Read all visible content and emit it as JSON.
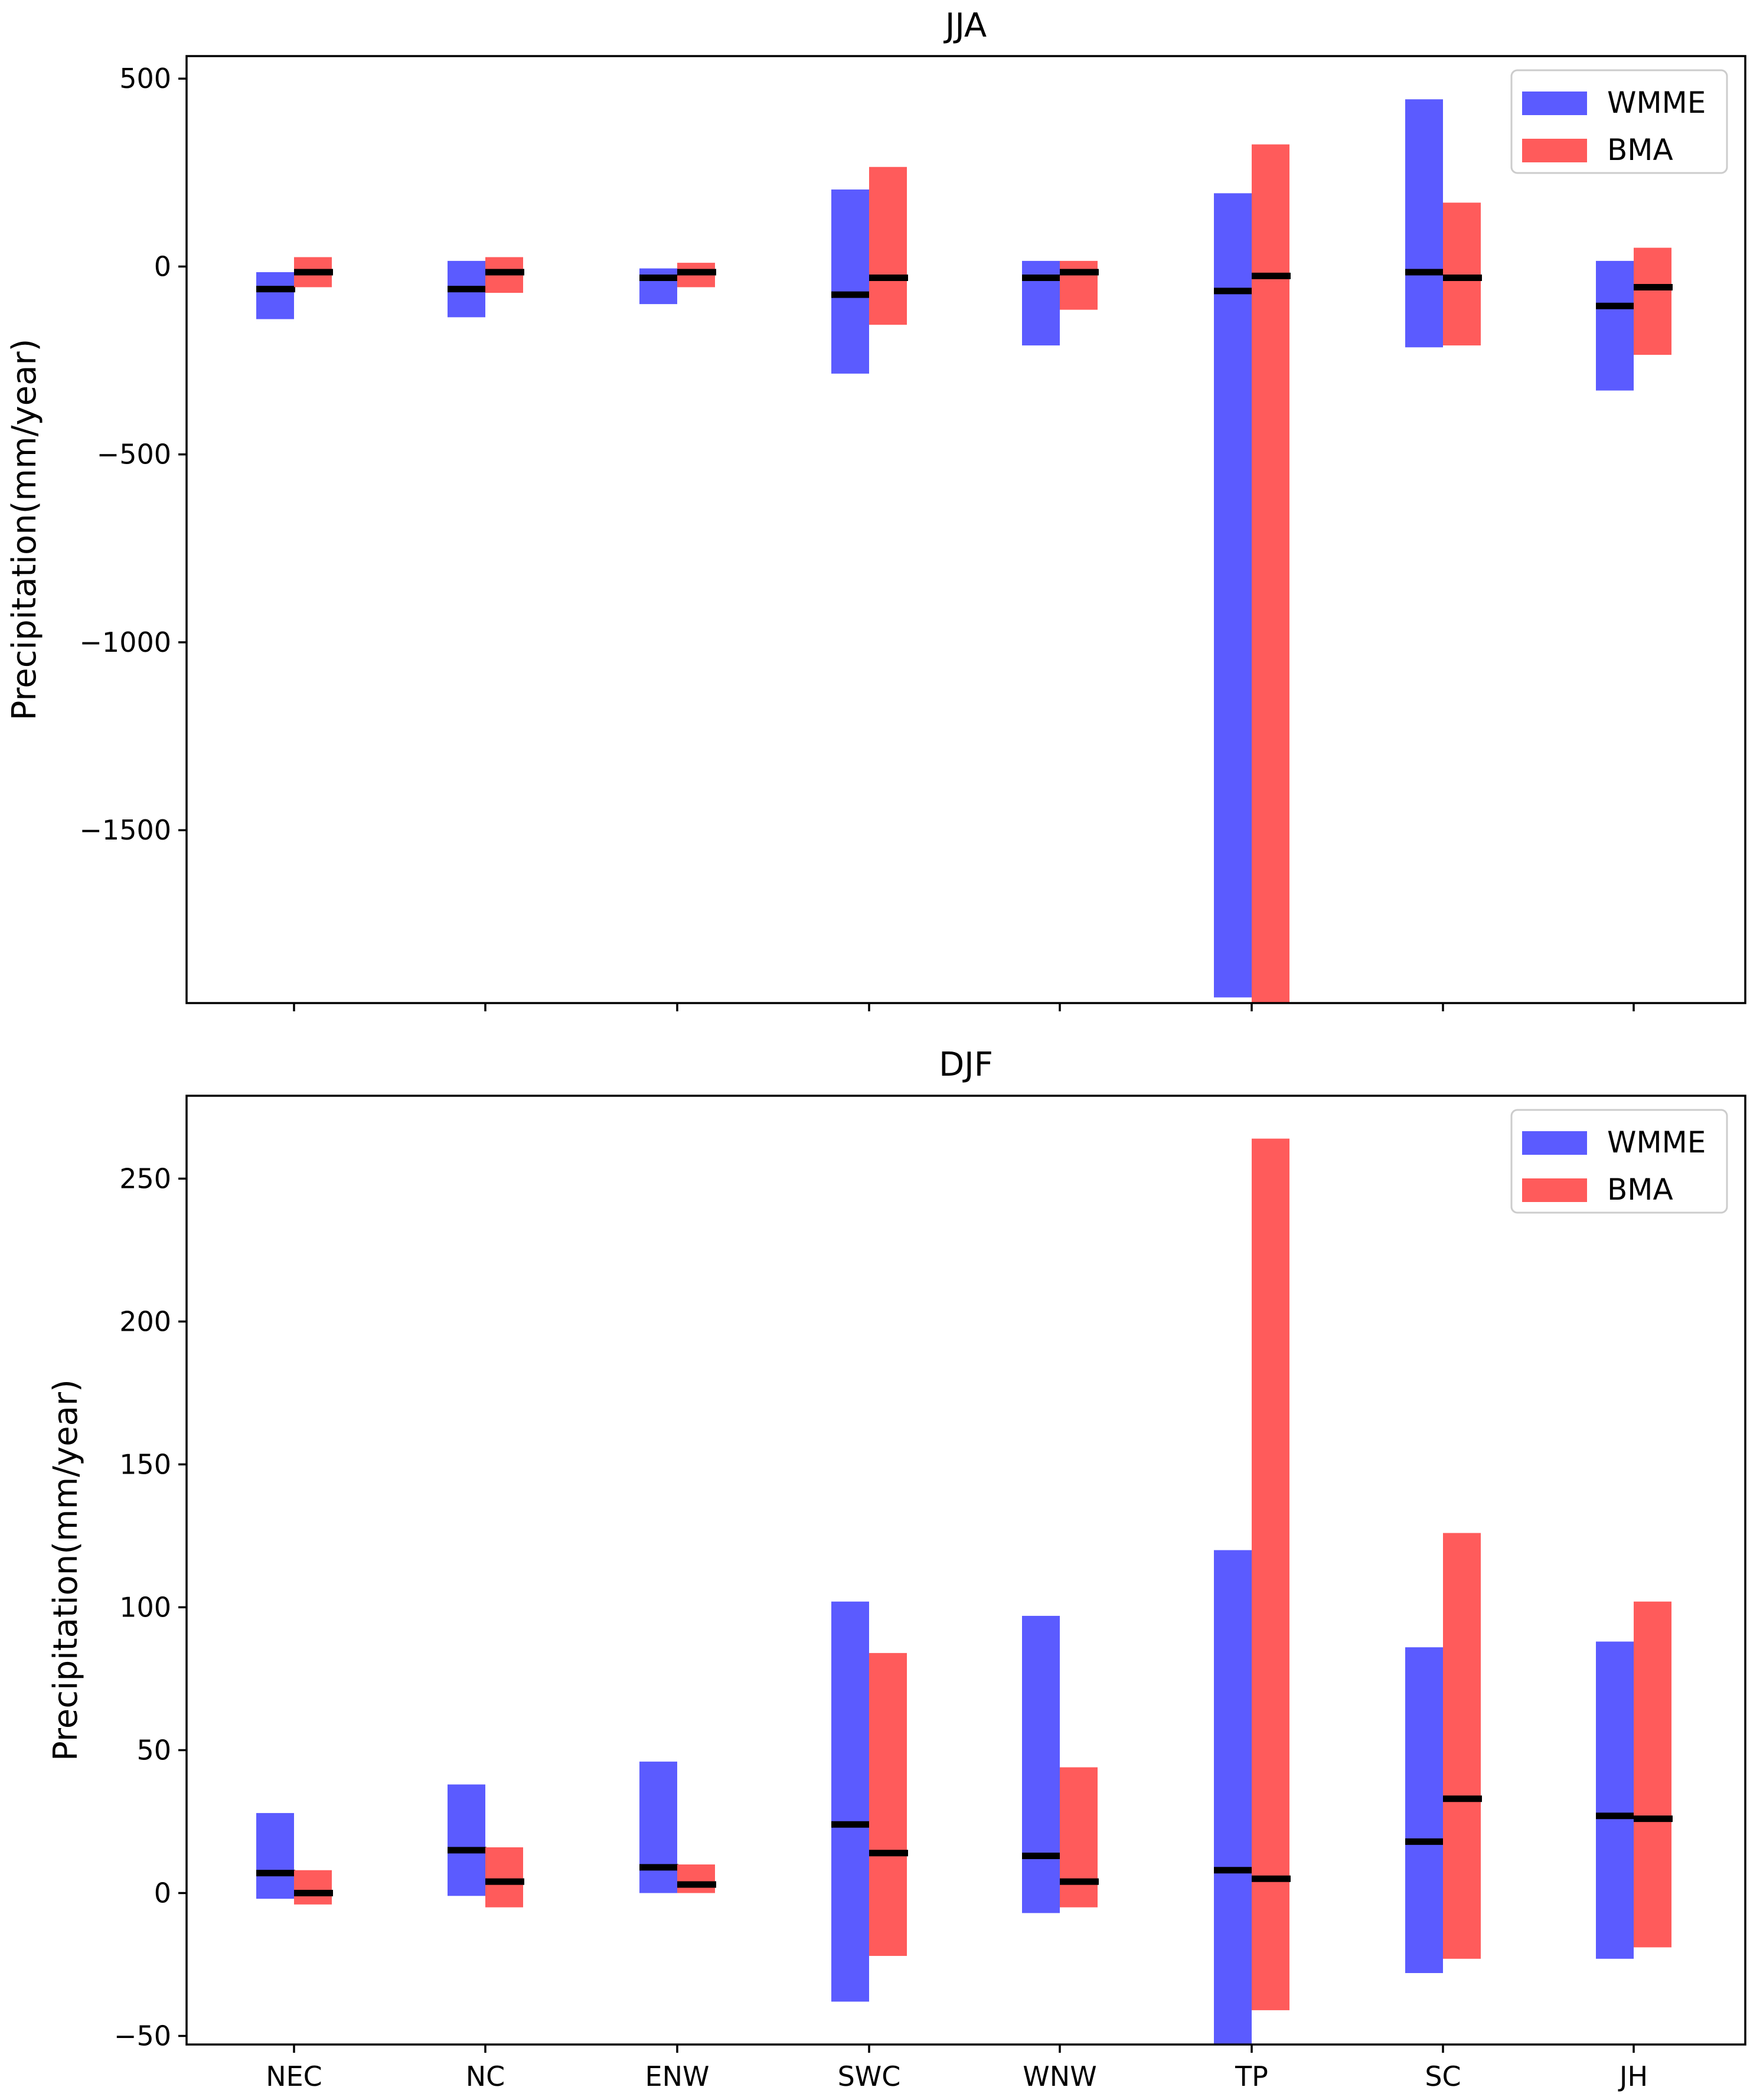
{
  "chart_data": [
    {
      "type": "floating-bar",
      "title": "JJA",
      "ylabel": "Precipitation(mm/year)",
      "xlabel": "",
      "categories": [
        "NEC",
        "NC",
        "ENW",
        "SWC",
        "WNW",
        "TP",
        "SC",
        "JH"
      ],
      "ylim": [
        -1960,
        560
      ],
      "yticks": [
        500,
        0,
        -500,
        -1000,
        -1500
      ],
      "ytick_labels": [
        "500",
        "0",
        "−500",
        "−1000",
        "−1500"
      ],
      "show_xtick_labels": false,
      "legend": {
        "location": "upper right",
        "entries": [
          "WMME",
          "BMA"
        ]
      },
      "series": [
        {
          "name": "WMME",
          "color": "#5b5bff",
          "low": [
            -140,
            -135,
            -100,
            -285,
            -210,
            -1945,
            -215,
            -330
          ],
          "high": [
            -15,
            15,
            -5,
            205,
            15,
            195,
            445,
            15
          ],
          "median": [
            -60,
            -60,
            -30,
            -75,
            -30,
            -65,
            -15,
            -105
          ]
        },
        {
          "name": "BMA",
          "color": "#ff5b5b",
          "low": [
            -55,
            -70,
            -55,
            -155,
            -115,
            -1960,
            -210,
            -235
          ],
          "high": [
            25,
            25,
            10,
            265,
            15,
            325,
            170,
            50
          ],
          "median": [
            -15,
            -15,
            -15,
            -30,
            -15,
            -25,
            -30,
            -55
          ]
        }
      ]
    },
    {
      "type": "floating-bar",
      "title": "DJF",
      "ylabel": "Precipitation(mm/year)",
      "xlabel": "",
      "categories": [
        "NEC",
        "NC",
        "ENW",
        "SWC",
        "WNW",
        "TP",
        "SC",
        "JH"
      ],
      "ylim": [
        -53,
        279
      ],
      "yticks": [
        250,
        200,
        150,
        100,
        50,
        0,
        -50
      ],
      "ytick_labels": [
        "250",
        "200",
        "150",
        "100",
        "50",
        "0",
        "−50"
      ],
      "show_xtick_labels": true,
      "legend": {
        "location": "upper right",
        "entries": [
          "WMME",
          "BMA"
        ]
      },
      "series": [
        {
          "name": "WMME",
          "color": "#5b5bff",
          "low": [
            -2,
            -1,
            0,
            -38,
            -7,
            -53,
            -28,
            -23
          ],
          "high": [
            28,
            38,
            46,
            102,
            97,
            120,
            86,
            88
          ],
          "median": [
            7,
            15,
            9,
            24,
            13,
            8,
            18,
            27
          ]
        },
        {
          "name": "BMA",
          "color": "#ff5b5b",
          "low": [
            -4,
            -5,
            0,
            -22,
            -5,
            -41,
            -23,
            -19
          ],
          "high": [
            8,
            16,
            10,
            84,
            44,
            264,
            126,
            102
          ],
          "median": [
            0,
            4,
            3,
            14,
            4,
            5,
            33,
            26
          ]
        }
      ]
    }
  ]
}
